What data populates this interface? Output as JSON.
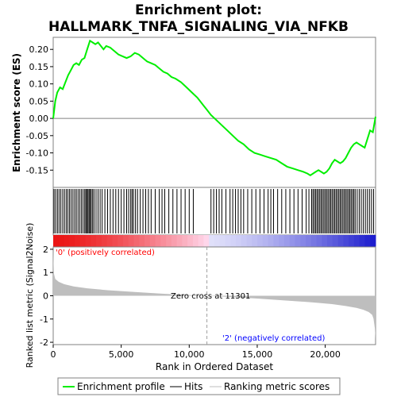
{
  "chart_data": {
    "type": "line",
    "title": "Enrichment plot:",
    "subtitle": "HALLMARK_TNFA_SIGNALING_VIA_NFKB",
    "es_panel": {
      "ylabel": "Enrichment score (ES)",
      "ylim": [
        -0.2,
        0.235
      ],
      "yticks": [
        0.2,
        0.15,
        0.1,
        0.05,
        0.0,
        -0.05,
        -0.1,
        -0.15
      ],
      "ytick_labels": [
        "0.20",
        "0.15",
        "0.10",
        "0.05",
        "0.00",
        "-0.05",
        "-0.10",
        "-0.15"
      ],
      "series": [
        {
          "name": "Enrichment profile",
          "color": "#00ee00",
          "x": [
            0,
            150,
            300,
            500,
            700,
            900,
            1100,
            1300,
            1500,
            1700,
            1900,
            2100,
            2300,
            2500,
            2700,
            2900,
            3100,
            3300,
            3500,
            3700,
            3900,
            4200,
            4500,
            4800,
            5100,
            5400,
            5700,
            6000,
            6300,
            6600,
            6900,
            7200,
            7500,
            7800,
            8100,
            8400,
            8700,
            9000,
            9400,
            9800,
            10200,
            10600,
            11000,
            11301,
            11600,
            12000,
            12400,
            12800,
            13200,
            13600,
            14000,
            14400,
            14800,
            15200,
            15600,
            16000,
            16400,
            16800,
            17200,
            17600,
            18000,
            18400,
            18700,
            18900,
            19100,
            19300,
            19500,
            19700,
            19900,
            20100,
            20300,
            20500,
            20700,
            20900,
            21100,
            21300,
            21500,
            21700,
            21900,
            22100,
            22300,
            22500,
            22700,
            22900,
            23100,
            23300,
            23500,
            23700
          ],
          "y": [
            0.0,
            0.05,
            0.075,
            0.09,
            0.085,
            0.105,
            0.125,
            0.14,
            0.155,
            0.16,
            0.155,
            0.17,
            0.175,
            0.2,
            0.225,
            0.22,
            0.215,
            0.22,
            0.21,
            0.2,
            0.21,
            0.205,
            0.195,
            0.185,
            0.18,
            0.175,
            0.18,
            0.19,
            0.185,
            0.175,
            0.165,
            0.16,
            0.155,
            0.145,
            0.135,
            0.13,
            0.12,
            0.115,
            0.105,
            0.09,
            0.075,
            0.06,
            0.04,
            0.025,
            0.01,
            -0.005,
            -0.02,
            -0.035,
            -0.05,
            -0.065,
            -0.075,
            -0.09,
            -0.1,
            -0.105,
            -0.11,
            -0.115,
            -0.12,
            -0.13,
            -0.14,
            -0.145,
            -0.15,
            -0.155,
            -0.16,
            -0.165,
            -0.16,
            -0.155,
            -0.15,
            -0.155,
            -0.16,
            -0.155,
            -0.145,
            -0.13,
            -0.12,
            -0.125,
            -0.13,
            -0.125,
            -0.115,
            -0.1,
            -0.085,
            -0.075,
            -0.07,
            -0.075,
            -0.08,
            -0.085,
            -0.06,
            -0.035,
            -0.04,
            0.005
          ]
        }
      ]
    },
    "hits": {
      "name": "Hits",
      "positions": [
        60,
        180,
        310,
        430,
        560,
        700,
        830,
        960,
        1080,
        1200,
        1320,
        1450,
        1580,
        1700,
        1830,
        1960,
        2080,
        2200,
        2320,
        2400,
        2480,
        2560,
        2640,
        2720,
        2800,
        2900,
        3000,
        3150,
        3300,
        3450,
        3600,
        3800,
        4000,
        4200,
        4400,
        4600,
        4800,
        5000,
        5200,
        5400,
        5550,
        5700,
        5800,
        5900,
        6050,
        6200,
        6400,
        6600,
        6800,
        7000,
        7200,
        7500,
        7800,
        8000,
        8200,
        8500,
        8800,
        9100,
        9400,
        9700,
        10000,
        10300,
        11600,
        11800,
        12000,
        12200,
        12400,
        12700,
        13000,
        13200,
        13400,
        13600,
        13800,
        14000,
        14300,
        14600,
        14900,
        15200,
        15500,
        15800,
        16000,
        16200,
        16500,
        16800,
        17100,
        17400,
        17700,
        18000,
        18300,
        18600,
        18800,
        19000,
        19100,
        19200,
        19300,
        19400,
        19500,
        19600,
        19700,
        19800,
        19900,
        20000,
        20100,
        20200,
        20300,
        20400,
        20500,
        20600,
        20700,
        20800,
        20900,
        21000,
        21100,
        21200,
        21300,
        21400,
        21500,
        21600,
        21700,
        21800,
        21900,
        22000,
        22100,
        22200,
        22350,
        22500,
        22650,
        22800,
        22950,
        23100,
        23250,
        23400,
        23550
      ]
    },
    "rank_panel": {
      "ylabel": "Ranked list metric (Signal2Noise)",
      "ylim": [
        -2.1,
        2.1
      ],
      "yticks": [
        2,
        1,
        0,
        -1,
        -2
      ],
      "ytick_labels": [
        "2",
        "1",
        "0",
        "-1",
        "-2"
      ],
      "series": [
        {
          "name": "Ranking metric scores",
          "color": "#bebebe",
          "x": [
            0,
            50,
            150,
            400,
            800,
            1500,
            2500,
            4000,
            6000,
            8000,
            10000,
            11301,
            13000,
            15000,
            17000,
            19000,
            20500,
            21500,
            22300,
            22800,
            23200,
            23450,
            23550,
            23650,
            23700
          ],
          "y": [
            1.95,
            0.95,
            0.72,
            0.6,
            0.5,
            0.4,
            0.32,
            0.24,
            0.16,
            0.09,
            0.03,
            0.0,
            -0.05,
            -0.12,
            -0.2,
            -0.28,
            -0.36,
            -0.44,
            -0.52,
            -0.6,
            -0.7,
            -0.82,
            -0.98,
            -1.4,
            -1.85
          ]
        }
      ],
      "zero_cross_label": "Zero cross at 11301",
      "zero_cross": 11301,
      "pos_label": "'0' (positively correlated)",
      "neg_label": "'2' (negatively correlated)",
      "pos_color": "#ff0000",
      "neg_color": "#0000ff"
    },
    "xlabel": "Rank in Ordered Dataset",
    "xlim": [
      0,
      23700
    ],
    "xticks": [
      0,
      5000,
      10000,
      15000,
      20000
    ],
    "xtick_labels": [
      "0",
      "5,000",
      "10,000",
      "15,000",
      "20,000"
    ],
    "legend": {
      "placement": "bottom",
      "entries": [
        {
          "label": "Enrichment profile",
          "color": "#00ee00"
        },
        {
          "label": "Hits",
          "color": "#000000"
        },
        {
          "label": "Ranking metric scores",
          "color": "#bebebe"
        }
      ]
    },
    "grid": false
  }
}
